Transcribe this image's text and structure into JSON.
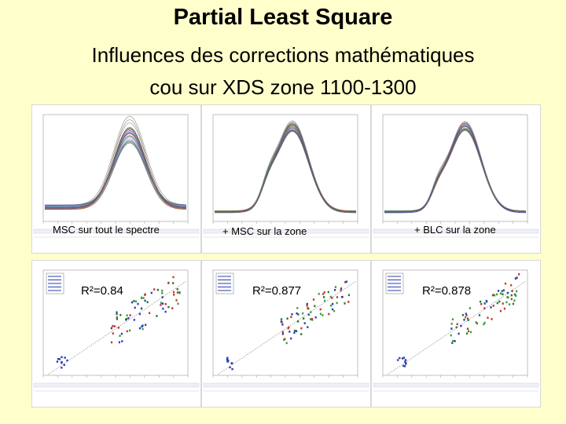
{
  "slide": {
    "title": "Partial Least Square",
    "subtitle_line1": "Influences des corrections mathématiques",
    "subtitle_line2": "cou sur XDS zone 1100-1300"
  },
  "spectra": [
    {
      "caption": "MSC sur tout le spectre",
      "treatment": "msc-full"
    },
    {
      "caption": "+ MSC sur la zone",
      "treatment": "msc-zone"
    },
    {
      "caption": "+ BLC sur la zone",
      "treatment": "blc-zone"
    }
  ],
  "regressions": [
    {
      "r2_label": "R²=0.84",
      "r2": 0.84
    },
    {
      "r2_label": "R²=0.877",
      "r2": 0.877
    },
    {
      "r2_label": "R²=0.878",
      "r2": 0.878
    }
  ],
  "colors": {
    "background": "#ffffcc",
    "spectra": [
      "#2a3fb0",
      "#2e8b57",
      "#9a5fb8",
      "#c0392b",
      "#666666",
      "#20a0a0",
      "#7a7a30"
    ],
    "points": [
      "#1f7a2a",
      "#c0392b",
      "#2a3fb0",
      "#3aa03a"
    ]
  }
}
